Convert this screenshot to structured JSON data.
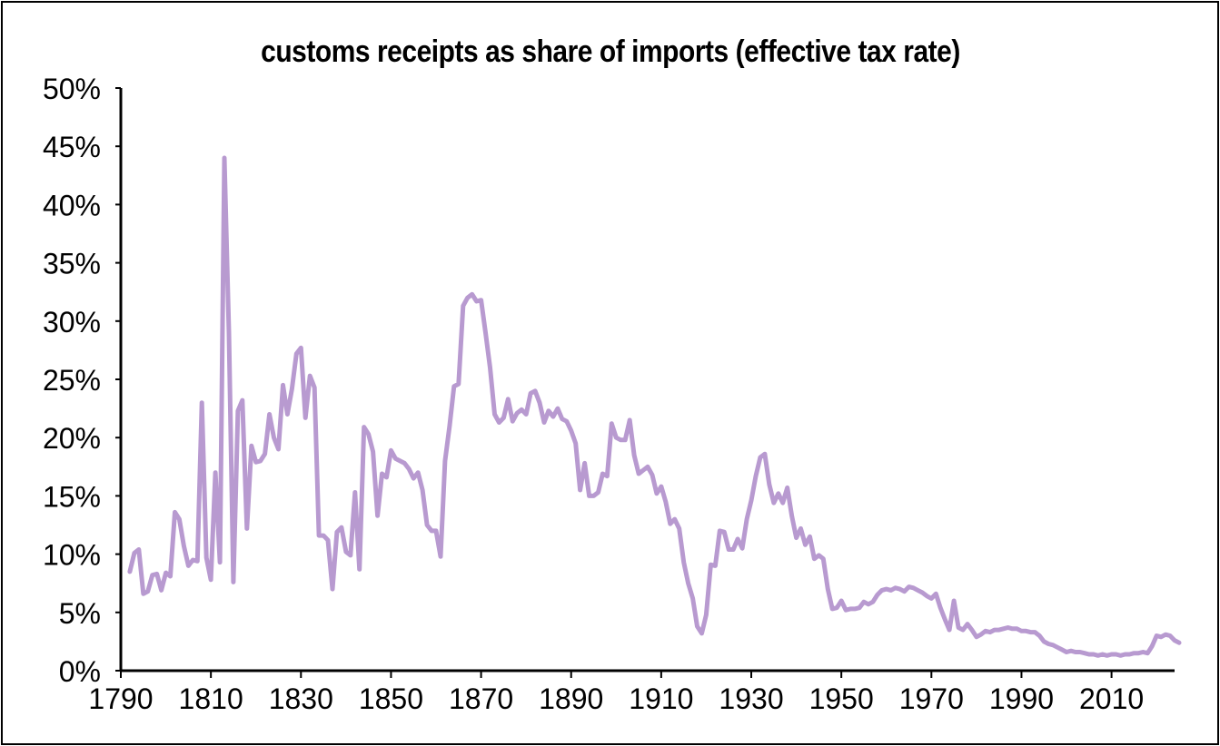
{
  "chart_data": {
    "type": "line",
    "title": "customs receipts as share of imports (effective tax rate)",
    "xlabel": "",
    "ylabel": "",
    "xlim": [
      1790,
      2024
    ],
    "ylim": [
      0,
      50
    ],
    "x_ticks": [
      1790,
      1810,
      1830,
      1850,
      1870,
      1890,
      1910,
      1930,
      1950,
      1970,
      1990,
      2010
    ],
    "x_tick_labels": [
      "1790",
      "1810",
      "1830",
      "1850",
      "1870",
      "1890",
      "1910",
      "1930",
      "1950",
      "1970",
      "1990",
      "2010"
    ],
    "y_ticks": [
      0,
      5,
      10,
      15,
      20,
      25,
      30,
      35,
      40,
      45,
      50
    ],
    "y_tick_labels": [
      "0%",
      "5%",
      "10%",
      "15%",
      "20%",
      "25%",
      "30%",
      "35%",
      "40%",
      "45%",
      "50%"
    ],
    "grid": false,
    "legend": "none",
    "series": [
      {
        "name": "customs receipts as share of imports",
        "color": "#b89ad0",
        "points": [
          [
            1792,
            8.5
          ],
          [
            1793,
            10.1
          ],
          [
            1794,
            10.4
          ],
          [
            1795,
            6.6
          ],
          [
            1796,
            6.8
          ],
          [
            1797,
            8.2
          ],
          [
            1798,
            8.3
          ],
          [
            1799,
            6.9
          ],
          [
            1800,
            8.4
          ],
          [
            1801,
            8.1
          ],
          [
            1802,
            13.6
          ],
          [
            1803,
            13.0
          ],
          [
            1804,
            10.7
          ],
          [
            1805,
            9.0
          ],
          [
            1806,
            9.5
          ],
          [
            1807,
            9.4
          ],
          [
            1808,
            23.0
          ],
          [
            1809,
            9.7
          ],
          [
            1810,
            7.8
          ],
          [
            1811,
            17.0
          ],
          [
            1812,
            9.3
          ],
          [
            1813,
            44.0
          ],
          [
            1814,
            29.0
          ],
          [
            1815,
            7.6
          ],
          [
            1816,
            22.3
          ],
          [
            1817,
            23.2
          ],
          [
            1818,
            12.2
          ],
          [
            1819,
            19.3
          ],
          [
            1820,
            17.9
          ],
          [
            1821,
            18.0
          ],
          [
            1822,
            18.6
          ],
          [
            1823,
            22.0
          ],
          [
            1824,
            20.0
          ],
          [
            1825,
            19.0
          ],
          [
            1826,
            24.5
          ],
          [
            1827,
            22.0
          ],
          [
            1828,
            24.2
          ],
          [
            1829,
            27.2
          ],
          [
            1830,
            27.7
          ],
          [
            1831,
            21.7
          ],
          [
            1832,
            25.3
          ],
          [
            1833,
            24.3
          ],
          [
            1834,
            11.6
          ],
          [
            1835,
            11.6
          ],
          [
            1836,
            11.2
          ],
          [
            1837,
            7.0
          ],
          [
            1838,
            11.9
          ],
          [
            1839,
            12.3
          ],
          [
            1840,
            10.2
          ],
          [
            1841,
            9.9
          ],
          [
            1842,
            15.3
          ],
          [
            1843,
            8.7
          ],
          [
            1844,
            20.9
          ],
          [
            1845,
            20.3
          ],
          [
            1846,
            18.8
          ],
          [
            1847,
            13.3
          ],
          [
            1848,
            16.9
          ],
          [
            1849,
            16.6
          ],
          [
            1850,
            18.9
          ],
          [
            1851,
            18.2
          ],
          [
            1852,
            18.0
          ],
          [
            1853,
            17.8
          ],
          [
            1854,
            17.3
          ],
          [
            1855,
            16.5
          ],
          [
            1856,
            17.0
          ],
          [
            1857,
            15.5
          ],
          [
            1858,
            12.5
          ],
          [
            1859,
            12.0
          ],
          [
            1860,
            12.0
          ],
          [
            1861,
            9.8
          ],
          [
            1862,
            18.0
          ],
          [
            1863,
            21.0
          ],
          [
            1864,
            24.4
          ],
          [
            1865,
            24.6
          ],
          [
            1866,
            31.3
          ],
          [
            1867,
            32.0
          ],
          [
            1868,
            32.3
          ],
          [
            1869,
            31.7
          ],
          [
            1870,
            31.8
          ],
          [
            1871,
            29.0
          ],
          [
            1872,
            26.0
          ],
          [
            1873,
            22.0
          ],
          [
            1874,
            21.3
          ],
          [
            1875,
            21.7
          ],
          [
            1876,
            23.3
          ],
          [
            1877,
            21.4
          ],
          [
            1878,
            22.1
          ],
          [
            1879,
            22.4
          ],
          [
            1880,
            22.0
          ],
          [
            1881,
            23.8
          ],
          [
            1882,
            24.0
          ],
          [
            1883,
            23.0
          ],
          [
            1884,
            21.3
          ],
          [
            1885,
            22.3
          ],
          [
            1886,
            21.8
          ],
          [
            1887,
            22.5
          ],
          [
            1888,
            21.6
          ],
          [
            1889,
            21.4
          ],
          [
            1890,
            20.6
          ],
          [
            1891,
            19.5
          ],
          [
            1892,
            15.5
          ],
          [
            1893,
            17.8
          ],
          [
            1894,
            15.0
          ],
          [
            1895,
            15.0
          ],
          [
            1896,
            15.3
          ],
          [
            1897,
            16.9
          ],
          [
            1898,
            16.7
          ],
          [
            1899,
            21.2
          ],
          [
            1900,
            20.0
          ],
          [
            1901,
            19.8
          ],
          [
            1902,
            19.8
          ],
          [
            1903,
            21.5
          ],
          [
            1904,
            18.5
          ],
          [
            1905,
            16.9
          ],
          [
            1906,
            17.2
          ],
          [
            1907,
            17.5
          ],
          [
            1908,
            16.8
          ],
          [
            1909,
            15.2
          ],
          [
            1910,
            15.8
          ],
          [
            1911,
            14.5
          ],
          [
            1912,
            12.6
          ],
          [
            1913,
            13.0
          ],
          [
            1914,
            12.2
          ],
          [
            1915,
            9.3
          ],
          [
            1916,
            7.5
          ],
          [
            1917,
            6.2
          ],
          [
            1918,
            3.8
          ],
          [
            1919,
            3.2
          ],
          [
            1920,
            4.8
          ],
          [
            1921,
            9.1
          ],
          [
            1922,
            9.0
          ],
          [
            1923,
            12.0
          ],
          [
            1924,
            11.9
          ],
          [
            1925,
            10.4
          ],
          [
            1926,
            10.4
          ],
          [
            1927,
            11.3
          ],
          [
            1928,
            10.5
          ],
          [
            1929,
            13.0
          ],
          [
            1930,
            14.6
          ],
          [
            1931,
            16.7
          ],
          [
            1932,
            18.3
          ],
          [
            1933,
            18.6
          ],
          [
            1934,
            16.0
          ],
          [
            1935,
            14.4
          ],
          [
            1936,
            15.2
          ],
          [
            1937,
            14.4
          ],
          [
            1938,
            15.7
          ],
          [
            1939,
            13.3
          ],
          [
            1940,
            11.4
          ],
          [
            1941,
            12.2
          ],
          [
            1942,
            10.8
          ],
          [
            1943,
            11.5
          ],
          [
            1944,
            9.6
          ],
          [
            1945,
            9.9
          ],
          [
            1946,
            9.6
          ],
          [
            1947,
            7.0
          ],
          [
            1948,
            5.3
          ],
          [
            1949,
            5.4
          ],
          [
            1950,
            6.0
          ],
          [
            1951,
            5.2
          ],
          [
            1952,
            5.3
          ],
          [
            1953,
            5.3
          ],
          [
            1954,
            5.4
          ],
          [
            1955,
            5.9
          ],
          [
            1956,
            5.7
          ],
          [
            1957,
            5.9
          ],
          [
            1958,
            6.5
          ],
          [
            1959,
            6.9
          ],
          [
            1960,
            7.0
          ],
          [
            1961,
            6.9
          ],
          [
            1962,
            7.1
          ],
          [
            1963,
            7.0
          ],
          [
            1964,
            6.8
          ],
          [
            1965,
            7.2
          ],
          [
            1966,
            7.1
          ],
          [
            1967,
            6.9
          ],
          [
            1968,
            6.7
          ],
          [
            1969,
            6.4
          ],
          [
            1970,
            6.2
          ],
          [
            1971,
            6.6
          ],
          [
            1972,
            5.4
          ],
          [
            1973,
            4.4
          ],
          [
            1974,
            3.5
          ],
          [
            1975,
            6.0
          ],
          [
            1976,
            3.7
          ],
          [
            1977,
            3.5
          ],
          [
            1978,
            4.0
          ],
          [
            1979,
            3.5
          ],
          [
            1980,
            2.9
          ],
          [
            1981,
            3.1
          ],
          [
            1982,
            3.4
          ],
          [
            1983,
            3.3
          ],
          [
            1984,
            3.5
          ],
          [
            1985,
            3.5
          ],
          [
            1986,
            3.6
          ],
          [
            1987,
            3.7
          ],
          [
            1988,
            3.6
          ],
          [
            1989,
            3.6
          ],
          [
            1990,
            3.4
          ],
          [
            1991,
            3.4
          ],
          [
            1992,
            3.3
          ],
          [
            1993,
            3.3
          ],
          [
            1994,
            3.0
          ],
          [
            1995,
            2.5
          ],
          [
            1996,
            2.3
          ],
          [
            1997,
            2.2
          ],
          [
            1998,
            2.0
          ],
          [
            1999,
            1.8
          ],
          [
            2000,
            1.6
          ],
          [
            2001,
            1.7
          ],
          [
            2002,
            1.6
          ],
          [
            2003,
            1.6
          ],
          [
            2004,
            1.5
          ],
          [
            2005,
            1.4
          ],
          [
            2006,
            1.4
          ],
          [
            2007,
            1.3
          ],
          [
            2008,
            1.4
          ],
          [
            2009,
            1.3
          ],
          [
            2010,
            1.4
          ],
          [
            2011,
            1.4
          ],
          [
            2012,
            1.3
          ],
          [
            2013,
            1.4
          ],
          [
            2014,
            1.4
          ],
          [
            2015,
            1.5
          ],
          [
            2016,
            1.5
          ],
          [
            2017,
            1.6
          ],
          [
            2018,
            1.5
          ],
          [
            2019,
            2.1
          ],
          [
            2020,
            3.0
          ],
          [
            2021,
            2.9
          ],
          [
            2022,
            3.1
          ],
          [
            2023,
            3.0
          ],
          [
            2024,
            2.6
          ],
          [
            2025,
            2.4
          ]
        ]
      }
    ]
  }
}
